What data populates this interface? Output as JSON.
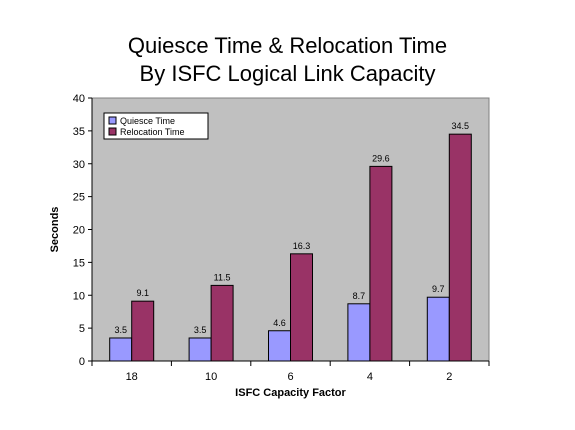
{
  "chart_data": {
    "type": "bar",
    "title": "Quiesce Time & Relocation Time\nBy ISFC Logical Link Capacity",
    "xlabel": "ISFC Capacity Factor",
    "ylabel": "Seconds",
    "categories": [
      "18",
      "10",
      "6",
      "4",
      "2"
    ],
    "series": [
      {
        "name": "Quiesce Time",
        "values": [
          3.5,
          3.5,
          4.6,
          8.7,
          9.7
        ],
        "labels": [
          "3.5",
          "3.5",
          "4.6",
          "8.7",
          "9.7"
        ],
        "color": "#9999ff"
      },
      {
        "name": "Relocation Time",
        "values": [
          9.1,
          11.5,
          16.3,
          29.6,
          34.5
        ],
        "labels": [
          "9.1",
          "11.5",
          "16.3",
          "29.6",
          "34.5"
        ],
        "color": "#993366"
      }
    ],
    "ylim": [
      0,
      40
    ],
    "yticks": [
      "0",
      "5",
      "10",
      "15",
      "20",
      "25",
      "30",
      "35",
      "40"
    ],
    "grid": false,
    "plot_background": "#c0c0c0",
    "legend_position": "top-left"
  }
}
